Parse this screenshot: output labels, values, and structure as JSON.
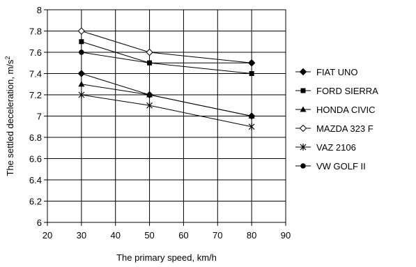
{
  "chart_data": {
    "type": "line",
    "title": "",
    "xlabel": "The primary speed, km/h",
    "ylabel_main": "The settled deceleration, m/s",
    "ylabel_sup": "2",
    "xlim": [
      20,
      90
    ],
    "ylim": [
      6,
      8
    ],
    "x_ticks": [
      "20",
      "30",
      "40",
      "50",
      "60",
      "70",
      "80",
      "90"
    ],
    "y_ticks": [
      "6",
      "6.2",
      "6.4",
      "6.6",
      "6.8",
      "7",
      "7.2",
      "7.4",
      "7.6",
      "7.8",
      "8"
    ],
    "x": [
      30,
      50,
      80
    ],
    "grid": "vertical and horizontal",
    "legend_position": "right",
    "series": [
      {
        "name": "FIAT UNO",
        "marker": "diamond-filled",
        "values": [
          7.4,
          7.2,
          7.0
        ]
      },
      {
        "name": "FORD SIERRA",
        "marker": "square-filled",
        "values": [
          7.7,
          7.5,
          7.4
        ]
      },
      {
        "name": "HONDA CIVIC",
        "marker": "triangle-filled",
        "values": [
          7.3,
          7.2,
          7.0
        ]
      },
      {
        "name": "MAZDA 323 F",
        "marker": "diamond-open",
        "values": [
          7.8,
          7.6,
          7.5
        ]
      },
      {
        "name": "VAZ 2106",
        "marker": "star",
        "values": [
          7.2,
          7.1,
          6.9
        ]
      },
      {
        "name": "VW GOLF II",
        "marker": "circle-filled",
        "values": [
          7.6,
          7.5,
          7.5
        ]
      }
    ],
    "colors": {
      "line": "#000000",
      "grid": "#000000",
      "background": "#ffffff"
    }
  }
}
